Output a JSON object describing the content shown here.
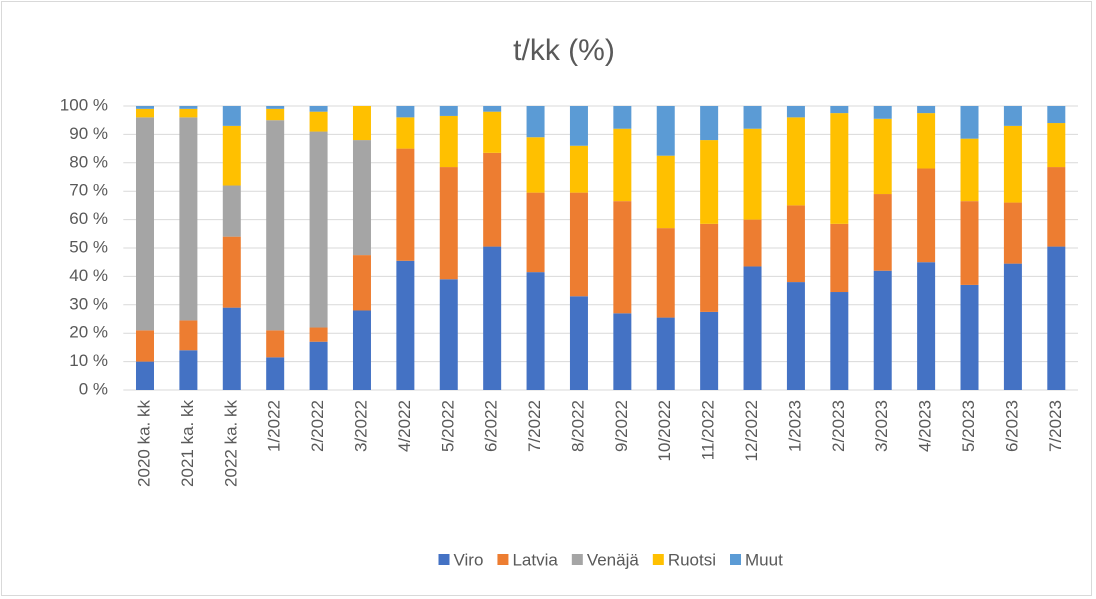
{
  "chart_data": {
    "type": "stacked_bar",
    "title": "t/kk (%)",
    "categories": [
      "2020 ka. kk",
      "2021 ka. kk",
      "2022 ka. kk",
      "1/2022",
      "2/2022",
      "3/2022",
      "4/2022",
      "5/2022",
      "6/2022",
      "7/2022",
      "8/2022",
      "9/2022",
      "10/2022",
      "11/2022",
      "12/2022",
      "1/2023",
      "2/2023",
      "3/2023",
      "4/2023",
      "5/2023",
      "6/2023",
      "7/2023"
    ],
    "series": [
      {
        "name": "Viro",
        "color": "#4472c4",
        "values": [
          10,
          14,
          29,
          11.5,
          17,
          28,
          45.5,
          39,
          50.5,
          41.5,
          33,
          27,
          25.5,
          27.5,
          43.5,
          38,
          34.5,
          42,
          45,
          37,
          44.5,
          50.5
        ]
      },
      {
        "name": "Latvia",
        "color": "#ed7d31",
        "values": [
          11,
          10.5,
          25,
          9.5,
          5,
          19.5,
          39.5,
          39.5,
          33,
          28,
          36.5,
          39.5,
          31.5,
          31,
          16.5,
          27,
          24,
          27,
          33,
          29.5,
          21.5,
          28
        ]
      },
      {
        "name": "Venäjä",
        "color": "#a5a5a5",
        "values": [
          75,
          71.5,
          18,
          74,
          69,
          40.5,
          0,
          0,
          0,
          0,
          0,
          0,
          0,
          0,
          0,
          0,
          0,
          0,
          0,
          0,
          0,
          0
        ]
      },
      {
        "name": "Ruotsi",
        "color": "#ffc000",
        "values": [
          3,
          3,
          21,
          4,
          7,
          12,
          11,
          18,
          14.5,
          19.5,
          16.5,
          25.5,
          25.5,
          29.5,
          32,
          31,
          39,
          26.5,
          19.5,
          22,
          27,
          15.5
        ]
      },
      {
        "name": "Muut",
        "color": "#5b9bd5",
        "values": [
          1,
          1,
          7,
          1,
          2,
          0,
          4,
          3.5,
          2,
          11,
          14,
          8,
          17.5,
          12,
          8,
          4,
          2.5,
          4.5,
          2.5,
          11.5,
          7,
          6
        ]
      }
    ],
    "ylim": [
      0,
      100
    ],
    "yticks": [
      {
        "value": 0,
        "label": "0 %"
      },
      {
        "value": 10,
        "label": "10 %"
      },
      {
        "value": 20,
        "label": "20 %"
      },
      {
        "value": 30,
        "label": "30 %"
      },
      {
        "value": 40,
        "label": "40 %"
      },
      {
        "value": 50,
        "label": "50 %"
      },
      {
        "value": 60,
        "label": "60 %"
      },
      {
        "value": 70,
        "label": "70 %"
      },
      {
        "value": 80,
        "label": "80 %"
      },
      {
        "value": 90,
        "label": "90 %"
      },
      {
        "value": 100,
        "label": "100 %"
      }
    ],
    "grid": true,
    "legend": "bottom"
  }
}
